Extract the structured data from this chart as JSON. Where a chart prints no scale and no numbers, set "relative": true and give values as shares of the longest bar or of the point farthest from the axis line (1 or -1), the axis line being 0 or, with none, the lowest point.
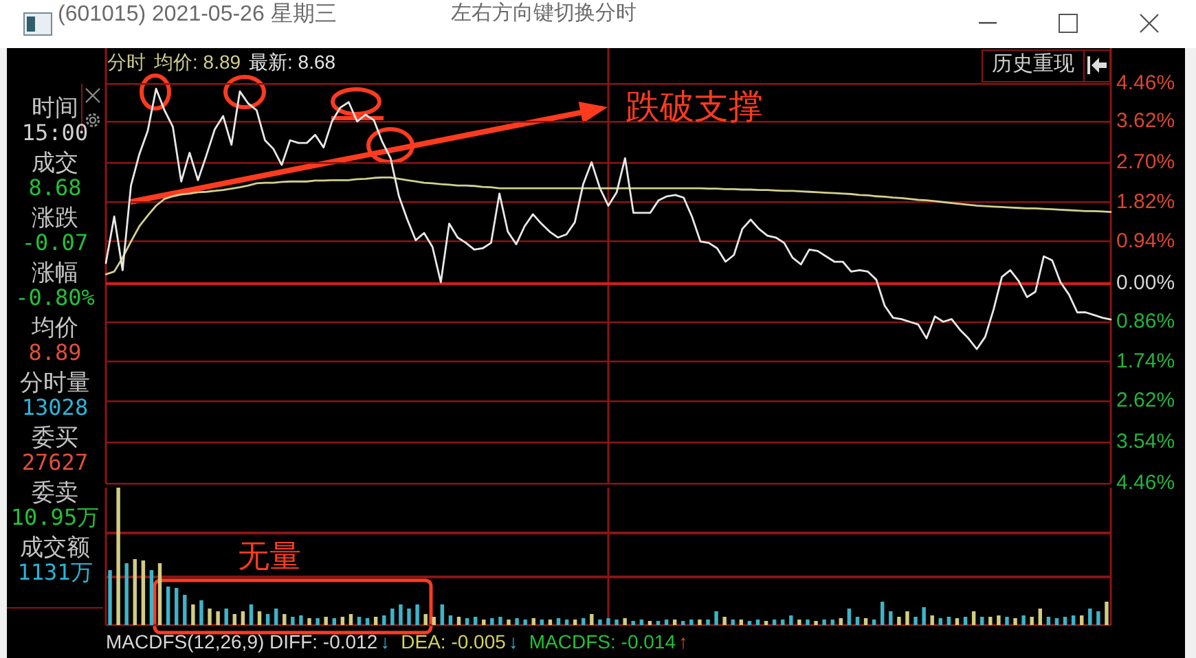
{
  "chart_data": [
    {
      "type": "line",
      "title": "(601015) 2021-05-26 星期三",
      "legend_title": "分时",
      "legend": "top left",
      "grid": "y",
      "categories": [
        null,
        null,
        null,
        null,
        null,
        null,
        null,
        null,
        null,
        null,
        null,
        null,
        null,
        null,
        null,
        null,
        null,
        null,
        null,
        null,
        null,
        null,
        null,
        null,
        null,
        null,
        null,
        null,
        null,
        null,
        null,
        null,
        null,
        null,
        null,
        null,
        null,
        null,
        null,
        null,
        null,
        null,
        null,
        null,
        null,
        null,
        null,
        null,
        null,
        null,
        null,
        null,
        null,
        null,
        null,
        null,
        null,
        null,
        null,
        null,
        null,
        null,
        null,
        null,
        null,
        null,
        null,
        null,
        null,
        null,
        null,
        null,
        null,
        null,
        null,
        null,
        null,
        null,
        null,
        null,
        null,
        null,
        null,
        null,
        null,
        null,
        null,
        null,
        null,
        null,
        null,
        null,
        null,
        null,
        null,
        null,
        null,
        null,
        null,
        null,
        null,
        null,
        null,
        null,
        null,
        null,
        null,
        null,
        null,
        null,
        null,
        null,
        null,
        null,
        null,
        null,
        null,
        null,
        null,
        null,
        null
      ],
      "series": [
        {
          "name": "均价: 8.89",
          "color": "#d2d08c",
          "values": [
            0.21,
            0.27,
            0.58,
            0.94,
            1.28,
            1.52,
            1.74,
            1.89,
            1.95,
            1.99,
            2.01,
            2.04,
            2.05,
            2.07,
            2.09,
            2.12,
            2.15,
            2.19,
            2.24,
            2.25,
            2.25,
            2.27,
            2.28,
            2.28,
            2.28,
            2.3,
            2.3,
            2.31,
            2.31,
            2.31,
            2.33,
            2.34,
            2.36,
            2.37,
            2.37,
            2.34,
            2.31,
            2.28,
            2.25,
            2.24,
            2.22,
            2.21,
            2.19,
            2.19,
            2.18,
            2.16,
            2.15,
            2.13,
            2.13,
            2.13,
            2.13,
            2.13,
            2.13,
            2.13,
            2.13,
            2.13,
            2.13,
            2.13,
            2.13,
            2.13,
            2.13,
            2.13,
            2.13,
            2.13,
            2.13,
            2.13,
            2.13,
            2.13,
            2.13,
            2.13,
            2.13,
            2.13,
            2.12,
            2.12,
            2.11,
            2.11,
            2.1,
            2.1,
            2.09,
            2.09,
            2.08,
            2.07,
            2.07,
            2.06,
            2.05,
            2.04,
            2.03,
            2.02,
            2.01,
            2.0,
            1.98,
            1.97,
            1.95,
            1.94,
            1.92,
            1.91,
            1.89,
            1.87,
            1.86,
            1.84,
            1.82,
            1.8,
            1.78,
            1.76,
            1.74,
            1.73,
            1.72,
            1.71,
            1.7,
            1.69,
            1.68,
            1.68,
            1.67,
            1.66,
            1.65,
            1.64,
            1.63,
            1.62,
            1.62,
            1.61,
            1.6
          ]
        },
        {
          "name": "最新: 8.68",
          "color": "#e8e8e8",
          "values": [
            0.46,
            1.5,
            0.3,
            2.19,
            2.89,
            3.41,
            4.35,
            3.87,
            3.5,
            2.28,
            2.92,
            2.31,
            2.86,
            3.44,
            3.74,
            3.1,
            4.29,
            4.02,
            3.87,
            3.2,
            3.01,
            2.65,
            3.2,
            3.14,
            3.14,
            3.32,
            3.04,
            3.62,
            3.93,
            4.05,
            3.62,
            3.77,
            3.65,
            3.17,
            2.8,
            1.95,
            1.43,
            0.97,
            1.13,
            0.82,
            0.03,
            1.34,
            1.03,
            0.91,
            0.76,
            0.79,
            0.91,
            2.01,
            1.16,
            0.88,
            1.28,
            1.55,
            1.34,
            1.16,
            1.03,
            1.1,
            1.37,
            2.22,
            2.71,
            2.13,
            1.74,
            2.04,
            2.8,
            1.58,
            1.58,
            1.58,
            1.86,
            1.95,
            1.98,
            1.92,
            1.49,
            0.94,
            0.91,
            0.79,
            0.49,
            0.64,
            1.22,
            1.43,
            1.22,
            1.07,
            1.03,
            0.91,
            0.58,
            0.43,
            0.76,
            0.73,
            0.61,
            0.49,
            0.49,
            0.27,
            0.3,
            0.27,
            0.09,
            -0.49,
            -0.76,
            -0.79,
            -0.85,
            -0.91,
            -1.22,
            -0.73,
            -0.85,
            -0.79,
            -1.03,
            -1.22,
            -1.46,
            -1.19,
            -0.58,
            0.15,
            0.3,
            0.06,
            -0.3,
            -0.18,
            0.61,
            0.52,
            0.03,
            -0.24,
            -0.64,
            -0.64,
            -0.7,
            -0.76,
            -0.8
          ]
        }
      ],
      "ylim": [
        -4.46,
        4.46
      ],
      "yticks": [
        {
          "value": 4.46,
          "label": "4.46%"
        },
        {
          "value": 3.62,
          "label": "3.62%"
        },
        {
          "value": 2.7,
          "label": "2.70%"
        },
        {
          "value": 1.82,
          "label": "1.82%"
        },
        {
          "value": 0.94,
          "label": "0.94%"
        },
        {
          "value": 0,
          "label": "0.00%"
        },
        {
          "value": -0.86,
          "label": "0.86%"
        },
        {
          "value": -1.74,
          "label": "1.74%"
        },
        {
          "value": -2.62,
          "label": "2.62%"
        },
        {
          "value": -3.54,
          "label": "3.54%"
        },
        {
          "value": -4.46,
          "label": "4.46%"
        }
      ],
      "ref_lines": [
        {
          "axis": "y",
          "value": 0,
          "color": "#d21c1c"
        }
      ],
      "annotations": [
        "跌破支撑"
      ]
    },
    {
      "type": "bar",
      "relative": true,
      "categories": [
        null,
        null,
        null,
        null,
        null,
        null,
        null,
        null,
        null,
        null,
        null,
        null,
        null,
        null,
        null,
        null,
        null,
        null,
        null,
        null,
        null,
        null,
        null,
        null,
        null,
        null,
        null,
        null,
        null,
        null,
        null,
        null,
        null,
        null,
        null,
        null,
        null,
        null,
        null,
        null,
        null,
        null,
        null,
        null,
        null,
        null,
        null,
        null,
        null,
        null,
        null,
        null,
        null,
        null,
        null,
        null,
        null,
        null,
        null,
        null,
        null,
        null,
        null,
        null,
        null,
        null,
        null,
        null,
        null,
        null,
        null,
        null,
        null,
        null,
        null,
        null,
        null,
        null,
        null,
        null,
        null,
        null,
        null,
        null,
        null,
        null,
        null,
        null,
        null,
        null,
        null,
        null,
        null,
        null,
        null,
        null,
        null,
        null,
        null,
        null,
        null,
        null,
        null,
        null,
        null,
        null,
        null,
        null,
        null,
        null,
        null,
        null,
        null,
        null,
        null,
        null,
        null,
        null,
        null,
        null,
        null
      ],
      "values": [
        0.4,
        1.0,
        0.45,
        0.48,
        0.47,
        0.4,
        0.45,
        0.28,
        0.27,
        0.22,
        0.15,
        0.18,
        0.12,
        0.1,
        0.12,
        0.08,
        0.1,
        0.15,
        0.1,
        0.08,
        0.12,
        0.08,
        0.06,
        0.07,
        0.05,
        0.05,
        0.06,
        0.05,
        0.06,
        0.08,
        0.06,
        0.05,
        0.06,
        0.07,
        0.12,
        0.15,
        0.12,
        0.15,
        0.08,
        0.06,
        0.15,
        0.07,
        0.06,
        0.05,
        0.06,
        0.04,
        0.05,
        0.06,
        0.04,
        0.05,
        0.04,
        0.05,
        0.04,
        0.04,
        0.05,
        0.04,
        0.04,
        0.05,
        0.08,
        0.04,
        0.05,
        0.04,
        0.05,
        0.03,
        0.04,
        0.03,
        0.03,
        0.04,
        0.04,
        0.03,
        0.04,
        0.04,
        0.04,
        0.1,
        0.06,
        0.04,
        0.04,
        0.03,
        0.04,
        0.03,
        0.04,
        0.04,
        0.07,
        0.04,
        0.04,
        0.03,
        0.04,
        0.04,
        0.05,
        0.12,
        0.06,
        0.05,
        0.04,
        0.17,
        0.1,
        0.06,
        0.1,
        0.06,
        0.13,
        0.07,
        0.05,
        0.06,
        0.05,
        0.06,
        0.1,
        0.06,
        0.06,
        0.07,
        0.06,
        0.05,
        0.07,
        0.06,
        0.12,
        0.06,
        0.05,
        0.06,
        0.07,
        0.07,
        0.12,
        0.1,
        0.17
      ],
      "colors": [
        "#3cb4c8",
        "#d2cc82",
        "#3cb4c8",
        "#d2cc82",
        "#d2cc82",
        "#3cb4c8",
        "#d2cc82",
        "#3cb4c8",
        "#3cb4c8",
        "#3cb4c8",
        "#d2cc82",
        "#3cb4c8",
        "#d2cc82",
        "#d2cc82",
        "#3cb4c8",
        "#d2cc82",
        "#d2cc82",
        "#3cb4c8",
        "#d2cc82",
        "#3cb4c8",
        "#3cb4c8",
        "#d2cc82",
        "#3cb4c8",
        "#3cb4c8",
        "#d2cc82",
        "#3cb4c8",
        "#d2cc82",
        "#3cb4c8",
        "#d2cc82",
        "#d2cc82",
        "#3cb4c8",
        "#3cb4c8",
        "#d2cc82",
        "#3cb4c8",
        "#3cb4c8",
        "#3cb4c8",
        "#3cb4c8",
        "#3cb4c8",
        "#d2cc82",
        "#d2cc82",
        "#3cb4c8",
        "#3cb4c8",
        "#d2cc82",
        "#3cb4c8",
        "#3cb4c8",
        "#d2cc82",
        "#3cb4c8",
        "#3cb4c8",
        "#d2cc82",
        "#3cb4c8",
        "#3cb4c8",
        "#d2cc82",
        "#3cb4c8",
        "#d2cc82",
        "#3cb4c8",
        "#3cb4c8",
        "#d2cc82",
        "#3cb4c8",
        "#d2cc82",
        "#3cb4c8",
        "#3cb4c8",
        "#3cb4c8",
        "#d2cc82",
        "#3cb4c8",
        "#3cb4c8",
        "#d2cc82",
        "#3cb4c8",
        "#3cb4c8",
        "#d2cc82",
        "#3cb4c8",
        "#3cb4c8",
        "#d2cc82",
        "#3cb4c8",
        "#3cb4c8",
        "#d2cc82",
        "#3cb4c8",
        "#d2cc82",
        "#3cb4c8",
        "#3cb4c8",
        "#d2cc82",
        "#3cb4c8",
        "#3cb4c8",
        "#3cb4c8",
        "#d2cc82",
        "#3cb4c8",
        "#d2cc82",
        "#3cb4c8",
        "#3cb4c8",
        "#d2cc82",
        "#3cb4c8",
        "#3cb4c8",
        "#d2cc82",
        "#3cb4c8",
        "#3cb4c8",
        "#3cb4c8",
        "#d2cc82",
        "#d2cc82",
        "#3cb4c8",
        "#3cb4c8",
        "#d2cc82",
        "#3cb4c8",
        "#3cb4c8",
        "#d2cc82",
        "#3cb4c8",
        "#d2cc82",
        "#3cb4c8",
        "#d2cc82",
        "#d2cc82",
        "#3cb4c8",
        "#d2cc82",
        "#3cb4c8",
        "#d2cc82",
        "#d2cc82",
        "#3cb4c8",
        "#3cb4c8",
        "#3cb4c8",
        "#3cb4c8",
        "#d2cc82",
        "#3cb4c8",
        "#3cb4c8",
        "#d2cc82"
      ],
      "ref_lines": [
        {
          "axis": "y",
          "value": 0.35,
          "color": "#8c1414"
        },
        {
          "axis": "y",
          "value": 0.67,
          "color": "#8c1414"
        }
      ],
      "annotations": [
        "无量"
      ]
    },
    {
      "type": "other",
      "annotations": [
        "左右方向键切换分时",
        "历史重现",
        "时间",
        "15:00",
        "成交",
        "8.68",
        "涨跌",
        "-0.07",
        "涨幅",
        "-0.80%",
        "均价",
        "8.89",
        "分时量",
        "13028",
        "委买",
        "27627",
        "委卖",
        "10.95万",
        "成交额",
        "1131万",
        "MACDFS(12,26,9) DIFF: -0.012",
        "↓",
        "DEA: -0.005",
        "↓",
        "MACDFS: -0.014",
        "↑"
      ]
    }
  ]
}
